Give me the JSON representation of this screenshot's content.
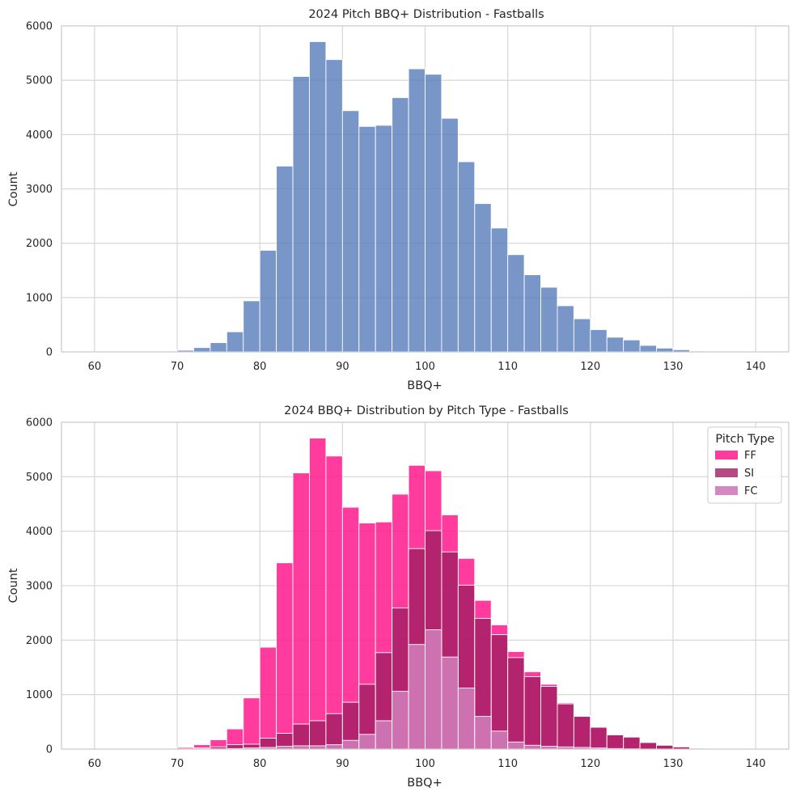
{
  "chart_data": [
    {
      "type": "bar",
      "title": "2024 Pitch BBQ+ Distribution - Fastballs",
      "xlabel": "BBQ+",
      "ylabel": "Count",
      "xlim": [
        56,
        144
      ],
      "ylim": [
        0,
        6000
      ],
      "xticks": [
        "60",
        "70",
        "80",
        "90",
        "100",
        "110",
        "120",
        "130",
        "140"
      ],
      "yticks": [
        "0",
        "1000",
        "2000",
        "3000",
        "4000",
        "5000",
        "6000"
      ],
      "grid": true,
      "bin_edges": [
        60,
        62,
        64,
        66,
        68,
        70,
        72,
        74,
        76,
        78,
        80,
        82,
        84,
        86,
        88,
        90,
        92,
        94,
        96,
        98,
        100,
        102,
        104,
        106,
        108,
        110,
        112,
        114,
        116,
        118,
        120,
        122,
        124,
        126,
        128,
        130,
        132,
        134,
        136,
        138,
        140
      ],
      "colors": {
        "bar": "#5a7fbb"
      },
      "series": [
        {
          "values": [
            2,
            3,
            3,
            4,
            5,
            30,
            80,
            170,
            370,
            940,
            1870,
            3420,
            5070,
            5710,
            5380,
            4440,
            4150,
            4170,
            4680,
            5210,
            5110,
            4300,
            3500,
            2730,
            2280,
            1790,
            1420,
            1190,
            850,
            610,
            410,
            270,
            220,
            120,
            70,
            40,
            15,
            10,
            5,
            2
          ]
        }
      ]
    },
    {
      "type": "bar",
      "stacked": "overlay",
      "title": "2024 BBQ+ Distribution by Pitch Type - Fastballs",
      "xlabel": "BBQ+",
      "ylabel": "Count",
      "xlim": [
        56,
        144
      ],
      "ylim": [
        0,
        6000
      ],
      "xticks": [
        "60",
        "70",
        "80",
        "90",
        "100",
        "110",
        "120",
        "130",
        "140"
      ],
      "yticks": [
        "0",
        "1000",
        "2000",
        "3000",
        "4000",
        "5000",
        "6000"
      ],
      "grid": true,
      "legend": {
        "title": "Pitch Type",
        "placement": "top-right"
      },
      "bin_edges": [
        60,
        62,
        64,
        66,
        68,
        70,
        72,
        74,
        76,
        78,
        80,
        82,
        84,
        86,
        88,
        90,
        92,
        94,
        96,
        98,
        100,
        102,
        104,
        106,
        108,
        110,
        112,
        114,
        116,
        118,
        120,
        122,
        124,
        126,
        128,
        130,
        132,
        134,
        136,
        138,
        140
      ],
      "series": [
        {
          "name": "FF",
          "color": "#ff1a8c",
          "values": [
            2,
            3,
            3,
            4,
            5,
            30,
            80,
            170,
            370,
            940,
            1870,
            3420,
            5070,
            5710,
            5380,
            4440,
            4150,
            4170,
            4680,
            5210,
            5110,
            4300,
            3500,
            2730,
            2280,
            1790,
            1420,
            1190,
            850,
            610,
            410,
            270,
            220,
            120,
            70,
            40,
            15,
            10,
            5,
            2
          ]
        },
        {
          "name": "SI",
          "color": "#a01d63",
          "values": [
            0,
            0,
            0,
            0,
            0,
            5,
            20,
            40,
            80,
            90,
            200,
            290,
            460,
            520,
            650,
            860,
            1190,
            1770,
            2590,
            3680,
            4010,
            3620,
            3010,
            2400,
            2100,
            1680,
            1330,
            1150,
            830,
            600,
            400,
            260,
            220,
            120,
            70,
            40,
            15,
            10,
            5,
            2
          ]
        },
        {
          "name": "FC",
          "color": "#d07ab8",
          "values": [
            0,
            0,
            0,
            0,
            0,
            0,
            5,
            5,
            10,
            20,
            30,
            50,
            60,
            60,
            80,
            160,
            270,
            520,
            1060,
            1920,
            2190,
            1690,
            1120,
            600,
            330,
            130,
            70,
            50,
            40,
            30,
            20,
            10,
            5,
            0,
            0,
            0,
            0,
            0,
            0,
            0
          ]
        }
      ]
    }
  ]
}
